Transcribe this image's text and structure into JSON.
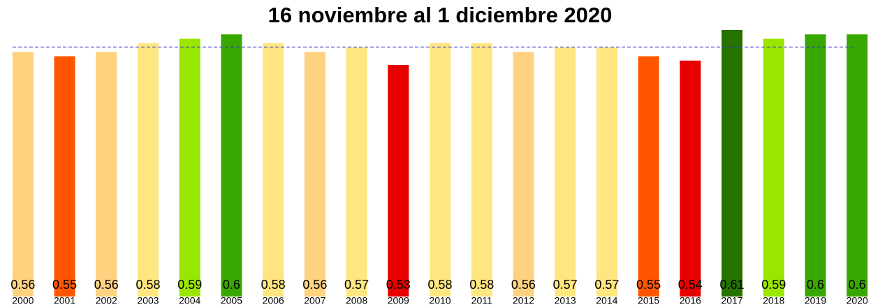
{
  "chart_data": {
    "type": "bar",
    "title": "16 noviembre al 1 diciembre 2020",
    "categories": [
      "2000",
      "2001",
      "2002",
      "2003",
      "2004",
      "2005",
      "2006",
      "2007",
      "2008",
      "2009",
      "2010",
      "2011",
      "2012",
      "2013",
      "2014",
      "2015",
      "2016",
      "2017",
      "2018",
      "2019",
      "2020"
    ],
    "values": [
      0.56,
      0.55,
      0.56,
      0.58,
      0.59,
      0.6,
      0.58,
      0.56,
      0.57,
      0.53,
      0.58,
      0.58,
      0.56,
      0.57,
      0.57,
      0.55,
      0.54,
      0.61,
      0.59,
      0.6,
      0.6
    ],
    "colors": [
      "#FFD280",
      "#FF5500",
      "#FFD280",
      "#FFE680",
      "#99E600",
      "#38A800",
      "#FFE680",
      "#FFD280",
      "#FFE680",
      "#E60000",
      "#FFE680",
      "#FFE680",
      "#FFD280",
      "#FFE680",
      "#FFE680",
      "#FF5500",
      "#E60000",
      "#267300",
      "#99E600",
      "#38A800",
      "#38A800"
    ],
    "reference_line": 0.571,
    "reference_color": "#3333cc",
    "ylim": [
      0,
      0.61
    ]
  }
}
